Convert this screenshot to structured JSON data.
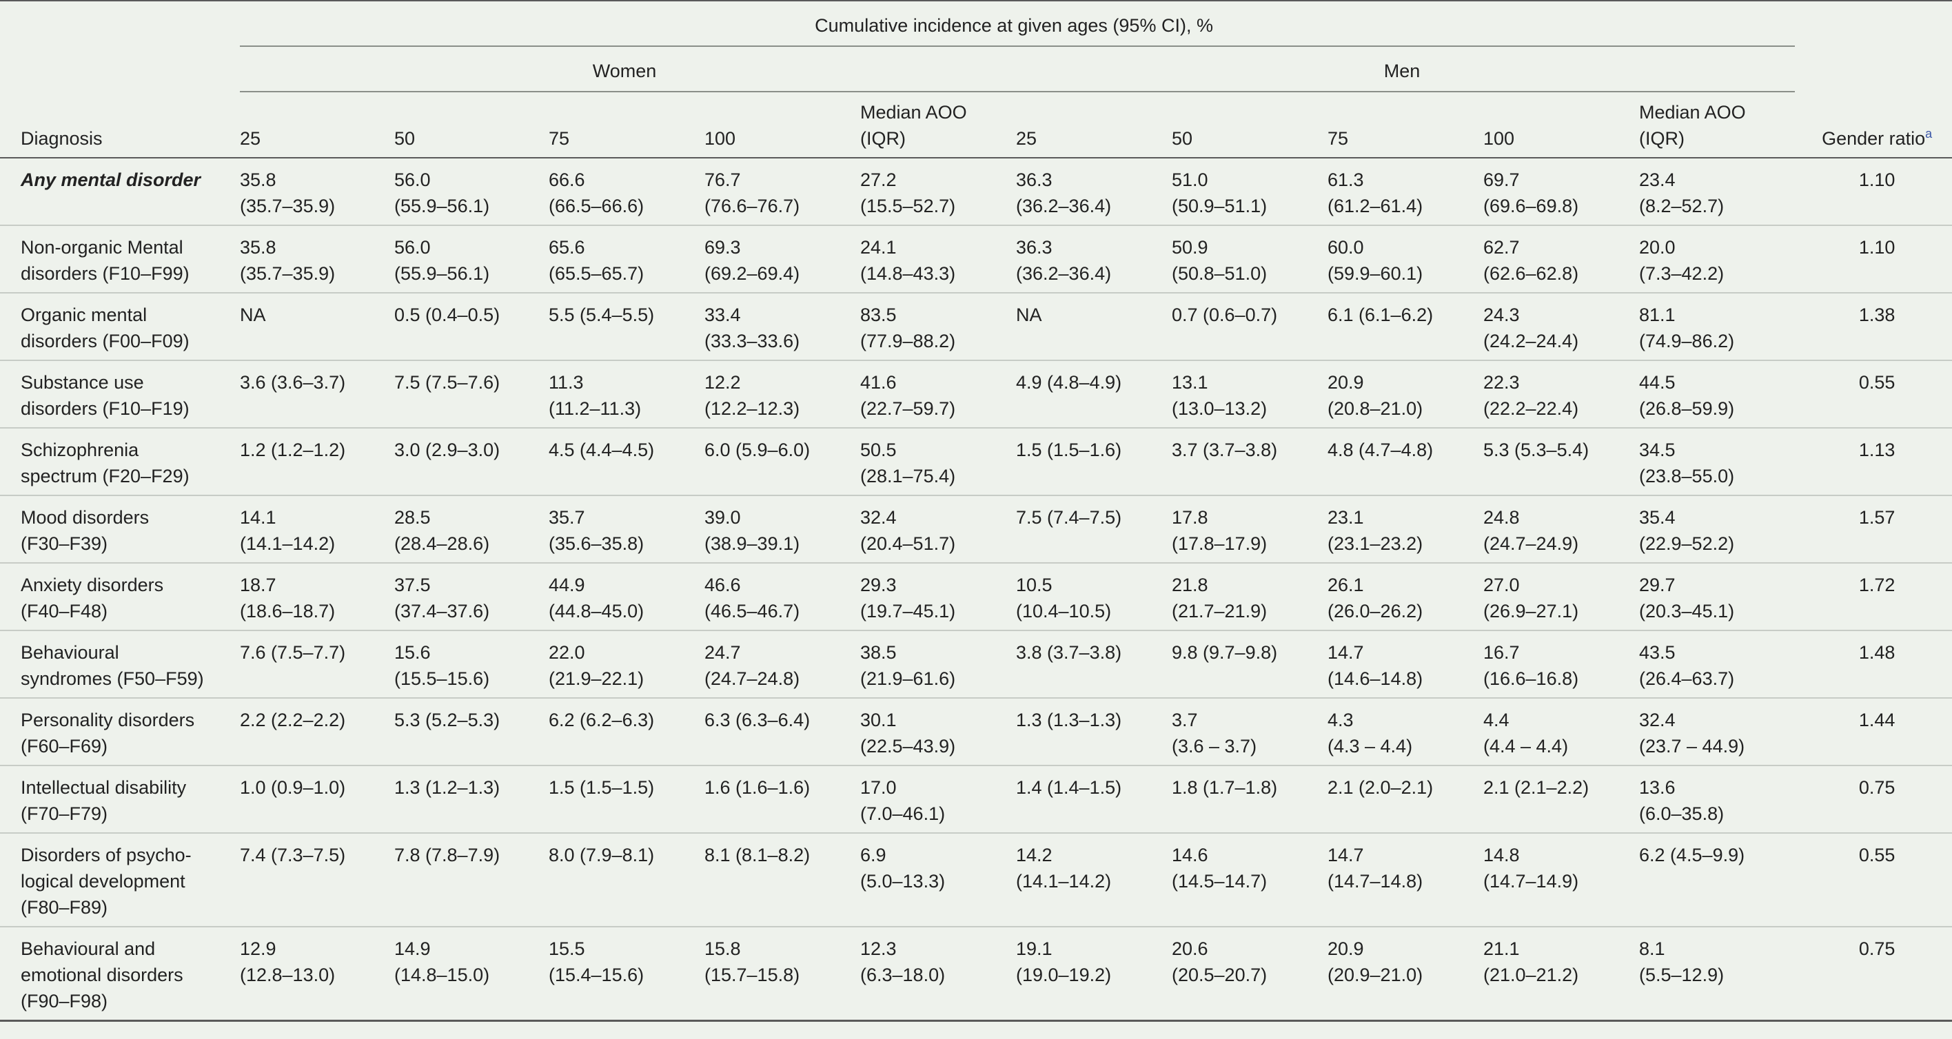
{
  "header": {
    "spanning_title": "Cumulative incidence at given ages (95% CI), %",
    "group_women": "Women",
    "group_men": "Men",
    "col_diagnosis": "Diagnosis",
    "women_cols": [
      "25",
      "50",
      "75",
      "100",
      "Median AOO (IQR)"
    ],
    "men_cols": [
      "25",
      "50",
      "75",
      "100",
      "Median AOO (IQR)"
    ],
    "col_gender_ratio": "Gender ratio",
    "gender_ratio_note": "a",
    "aoo_line1": "Median AOO",
    "aoo_line2": "(IQR)"
  },
  "rows": [
    {
      "diagnosis": [
        "Any mental disorder"
      ],
      "emphasis": true,
      "women": [
        [
          "35.8",
          "(35.7–35.9)"
        ],
        [
          "56.0",
          "(55.9–56.1)"
        ],
        [
          "66.6",
          "(66.5–66.6)"
        ],
        [
          "76.7",
          "(76.6–76.7)"
        ],
        [
          "27.2",
          "(15.5–52.7)"
        ]
      ],
      "men": [
        [
          "36.3",
          "(36.2–36.4)"
        ],
        [
          "51.0",
          "(50.9–51.1)"
        ],
        [
          "61.3",
          "(61.2–61.4)"
        ],
        [
          "69.7",
          "(69.6–69.8)"
        ],
        [
          "23.4",
          "(8.2–52.7)"
        ]
      ],
      "gender_ratio": "1.10"
    },
    {
      "diagnosis": [
        "Non-organic Mental",
        "disorders (F10–F99)"
      ],
      "emphasis": false,
      "women": [
        [
          "35.8",
          "(35.7–35.9)"
        ],
        [
          "56.0",
          "(55.9–56.1)"
        ],
        [
          "65.6",
          "(65.5–65.7)"
        ],
        [
          "69.3",
          "(69.2–69.4)"
        ],
        [
          "24.1",
          "(14.8–43.3)"
        ]
      ],
      "men": [
        [
          "36.3",
          "(36.2–36.4)"
        ],
        [
          "50.9",
          "(50.8–51.0)"
        ],
        [
          "60.0",
          "(59.9–60.1)"
        ],
        [
          "62.7",
          "(62.6–62.8)"
        ],
        [
          "20.0",
          "(7.3–42.2)"
        ]
      ],
      "gender_ratio": "1.10"
    },
    {
      "diagnosis": [
        "Organic mental",
        "disorders (F00–F09)"
      ],
      "emphasis": false,
      "women": [
        [
          "NA"
        ],
        [
          "0.5 (0.4–0.5)"
        ],
        [
          "5.5 (5.4–5.5)"
        ],
        [
          "33.4",
          "(33.3–33.6)"
        ],
        [
          "83.5",
          "(77.9–88.2)"
        ]
      ],
      "men": [
        [
          "NA"
        ],
        [
          "0.7 (0.6–0.7)"
        ],
        [
          "6.1 (6.1–6.2)"
        ],
        [
          "24.3",
          "(24.2–24.4)"
        ],
        [
          "81.1",
          "(74.9–86.2)"
        ]
      ],
      "gender_ratio": "1.38"
    },
    {
      "diagnosis": [
        "Substance use",
        "disorders (F10–F19)"
      ],
      "emphasis": false,
      "women": [
        [
          "3.6 (3.6–3.7)"
        ],
        [
          "7.5 (7.5–7.6)"
        ],
        [
          "11.3",
          "(11.2–11.3)"
        ],
        [
          "12.2",
          "(12.2–12.3)"
        ],
        [
          "41.6",
          "(22.7–59.7)"
        ]
      ],
      "men": [
        [
          "4.9 (4.8–4.9)"
        ],
        [
          "13.1",
          "(13.0–13.2)"
        ],
        [
          "20.9",
          "(20.8–21.0)"
        ],
        [
          "22.3",
          "(22.2–22.4)"
        ],
        [
          "44.5",
          "(26.8–59.9)"
        ]
      ],
      "gender_ratio": "0.55"
    },
    {
      "diagnosis": [
        "Schizophrenia",
        "spectrum (F20–F29)"
      ],
      "emphasis": false,
      "women": [
        [
          "1.2 (1.2–1.2)"
        ],
        [
          "3.0 (2.9–3.0)"
        ],
        [
          "4.5 (4.4–4.5)"
        ],
        [
          "6.0 (5.9–6.0)"
        ],
        [
          "50.5",
          "(28.1–75.4)"
        ]
      ],
      "men": [
        [
          "1.5 (1.5–1.6)"
        ],
        [
          "3.7 (3.7–3.8)"
        ],
        [
          "4.8 (4.7–4.8)"
        ],
        [
          "5.3 (5.3–5.4)"
        ],
        [
          "34.5",
          "(23.8–55.0)"
        ]
      ],
      "gender_ratio": "1.13"
    },
    {
      "diagnosis": [
        "Mood disorders",
        "(F30–F39)"
      ],
      "emphasis": false,
      "women": [
        [
          "14.1",
          "(14.1–14.2)"
        ],
        [
          "28.5",
          "(28.4–28.6)"
        ],
        [
          "35.7",
          "(35.6–35.8)"
        ],
        [
          "39.0",
          "(38.9–39.1)"
        ],
        [
          "32.4",
          "(20.4–51.7)"
        ]
      ],
      "men": [
        [
          "7.5 (7.4–7.5)"
        ],
        [
          "17.8",
          "(17.8–17.9)"
        ],
        [
          "23.1",
          "(23.1–23.2)"
        ],
        [
          "24.8",
          "(24.7–24.9)"
        ],
        [
          "35.4",
          "(22.9–52.2)"
        ]
      ],
      "gender_ratio": "1.57"
    },
    {
      "diagnosis": [
        "Anxiety disorders",
        "(F40–F48)"
      ],
      "emphasis": false,
      "women": [
        [
          "18.7",
          "(18.6–18.7)"
        ],
        [
          "37.5",
          "(37.4–37.6)"
        ],
        [
          "44.9",
          "(44.8–45.0)"
        ],
        [
          "46.6",
          "(46.5–46.7)"
        ],
        [
          "29.3",
          "(19.7–45.1)"
        ]
      ],
      "men": [
        [
          "10.5",
          "(10.4–10.5)"
        ],
        [
          "21.8",
          "(21.7–21.9)"
        ],
        [
          "26.1",
          "(26.0–26.2)"
        ],
        [
          "27.0",
          "(26.9–27.1)"
        ],
        [
          "29.7",
          "(20.3–45.1)"
        ]
      ],
      "gender_ratio": "1.72"
    },
    {
      "diagnosis": [
        "Behavioural",
        "syndromes (F50–F59)"
      ],
      "emphasis": false,
      "women": [
        [
          "7.6 (7.5–7.7)"
        ],
        [
          "15.6",
          "(15.5–15.6)"
        ],
        [
          "22.0",
          "(21.9–22.1)"
        ],
        [
          "24.7",
          "(24.7–24.8)"
        ],
        [
          "38.5",
          "(21.9–61.6)"
        ]
      ],
      "men": [
        [
          "3.8 (3.7–3.8)"
        ],
        [
          "9.8 (9.7–9.8)"
        ],
        [
          "14.7",
          "(14.6–14.8)"
        ],
        [
          "16.7",
          "(16.6–16.8)"
        ],
        [
          "43.5",
          "(26.4–63.7)"
        ]
      ],
      "gender_ratio": "1.48"
    },
    {
      "diagnosis": [
        "Personality disorders",
        "(F60–F69)"
      ],
      "emphasis": false,
      "women": [
        [
          "2.2 (2.2–2.2)"
        ],
        [
          "5.3 (5.2–5.3)"
        ],
        [
          "6.2 (6.2–6.3)"
        ],
        [
          "6.3 (6.3–6.4)"
        ],
        [
          "30.1",
          "(22.5–43.9)"
        ]
      ],
      "men": [
        [
          "1.3 (1.3–1.3)"
        ],
        [
          "3.7",
          "(3.6 – 3.7)"
        ],
        [
          "4.3",
          "(4.3 – 4.4)"
        ],
        [
          "4.4",
          "(4.4 – 4.4)"
        ],
        [
          "32.4",
          "(23.7 – 44.9)"
        ]
      ],
      "gender_ratio": "1.44"
    },
    {
      "diagnosis": [
        "Intellectual disability",
        "(F70–F79)"
      ],
      "emphasis": false,
      "women": [
        [
          "1.0 (0.9–1.0)"
        ],
        [
          "1.3 (1.2–1.3)"
        ],
        [
          "1.5 (1.5–1.5)"
        ],
        [
          "1.6 (1.6–1.6)"
        ],
        [
          "17.0",
          "(7.0–46.1)"
        ]
      ],
      "men": [
        [
          "1.4 (1.4–1.5)"
        ],
        [
          "1.8 (1.7–1.8)"
        ],
        [
          "2.1 (2.0–2.1)"
        ],
        [
          "2.1 (2.1–2.2)"
        ],
        [
          "13.6",
          "(6.0–35.8)"
        ]
      ],
      "gender_ratio": "0.75"
    },
    {
      "diagnosis": [
        "Disorders of psycho-",
        "logical development",
        "(F80–F89)"
      ],
      "emphasis": false,
      "women": [
        [
          "7.4 (7.3–7.5)"
        ],
        [
          "7.8 (7.8–7.9)"
        ],
        [
          "8.0 (7.9–8.1)"
        ],
        [
          "8.1 (8.1–8.2)"
        ],
        [
          "6.9",
          "(5.0–13.3)"
        ]
      ],
      "men": [
        [
          "14.2",
          "(14.1–14.2)"
        ],
        [
          "14.6",
          "(14.5–14.7)"
        ],
        [
          "14.7",
          "(14.7–14.8)"
        ],
        [
          "14.8",
          "(14.7–14.9)"
        ],
        [
          "6.2 (4.5–9.9)"
        ]
      ],
      "gender_ratio": "0.55"
    },
    {
      "diagnosis": [
        "Behavioural and",
        "emotional disorders",
        "(F90–F98)"
      ],
      "emphasis": false,
      "women": [
        [
          "12.9",
          "(12.8–13.0)"
        ],
        [
          "14.9",
          "(14.8–15.0)"
        ],
        [
          "15.5",
          "(15.4–15.6)"
        ],
        [
          "15.8",
          "(15.7–15.8)"
        ],
        [
          "12.3",
          "(6.3–18.0)"
        ]
      ],
      "men": [
        [
          "19.1",
          "(19.0–19.2)"
        ],
        [
          "20.6",
          "(20.5–20.7)"
        ],
        [
          "20.9",
          "(20.9–21.0)"
        ],
        [
          "21.1",
          "(21.0–21.2)"
        ],
        [
          "8.1",
          "(5.5–12.9)"
        ]
      ],
      "gender_ratio": "0.75"
    }
  ]
}
